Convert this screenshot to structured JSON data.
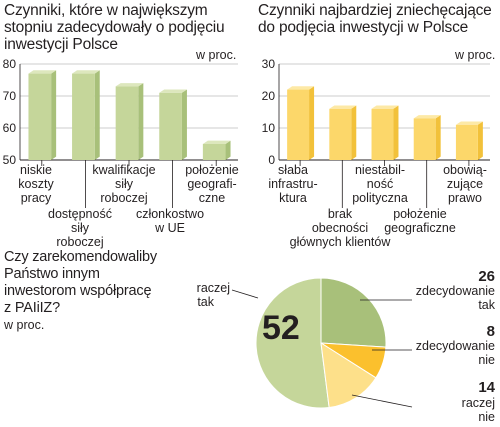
{
  "chart_data": [
    {
      "type": "bar",
      "title": "Czynniki, które w największym stopniu zadecydowały o podjęciu inwestycji Polsce",
      "unit": "w proc.",
      "ylim": [
        50,
        80
      ],
      "yticks": [
        50,
        60,
        70,
        80
      ],
      "grid": true,
      "categories": [
        [
          "niskie",
          "koszty",
          "pracy"
        ],
        [
          "dostępność",
          "siły",
          "roboczej"
        ],
        [
          "kwalifikacje",
          "siły",
          "roboczej"
        ],
        [
          "członkostwo",
          "w UE"
        ],
        [
          "położenie",
          "geografi-",
          "czne"
        ]
      ],
      "values": [
        77,
        77,
        73,
        71,
        55
      ],
      "colors": {
        "front": "#c5d69a",
        "side": "#a8c07a",
        "top": "#dde7bd"
      }
    },
    {
      "type": "bar",
      "title": "Czynniki najbardziej zniechęcające do podjęcia inwestycji w Polsce",
      "unit": "w proc.",
      "ylim": [
        0,
        30
      ],
      "yticks": [
        0,
        10,
        20,
        30
      ],
      "grid": true,
      "categories": [
        [
          "słaba",
          "infrastru-",
          "ktura"
        ],
        [
          "brak",
          "obecności",
          "głównych klientów"
        ],
        [
          "niestabil-",
          "ność",
          "polityczna"
        ],
        [
          "położenie",
          "geograficzne"
        ],
        [
          "obowią-",
          "zujące",
          "prawo"
        ]
      ],
      "values": [
        22,
        16,
        16,
        13,
        11
      ],
      "colors": {
        "front": "#fcd76a",
        "side": "#f2c13a",
        "top": "#fde9a6"
      }
    },
    {
      "type": "pie",
      "title": "Czy zarekomendowaliby Państwo innym inwestorom współpracę z PAIiIZ?",
      "unit": "w proc.",
      "slices": [
        {
          "label": "raczej tak",
          "value": 52,
          "color": "#c5d69a"
        },
        {
          "label": "zdecydowanie tak",
          "value": 26,
          "color": "#a8c07a"
        },
        {
          "label": "zdecydowanie nie",
          "value": 8,
          "color": "#fbc02d"
        },
        {
          "label": "raczej nie",
          "value": 14,
          "color": "#fde08a"
        }
      ]
    }
  ],
  "text": {
    "left_title_lines": [
      "Czynniki, które w największym",
      "stopniu zadecydowały o podjęciu",
      "inwestycji Polsce"
    ],
    "right_title_lines": [
      "Czynniki najbardziej zniechęcające",
      "do podjęcia inwestycji w Polsce"
    ],
    "pie_title_lines": [
      "Czy zarekomendowaliby",
      "Państwo innym",
      "inwestorom współpracę",
      "z PAIiIZ?"
    ],
    "unit": "w proc.",
    "pie_big_value": "52",
    "pie_labels": {
      "raczej_tak": [
        "raczej",
        "tak"
      ],
      "zdecydowanie_tak": [
        "zdecydowanie",
        "tak"
      ],
      "zdecydowanie_nie": [
        "zdecydowanie",
        "nie"
      ],
      "raczej_nie": [
        "raczej",
        "nie"
      ],
      "val_26": "26",
      "val_8": "8",
      "val_14": "14"
    }
  }
}
